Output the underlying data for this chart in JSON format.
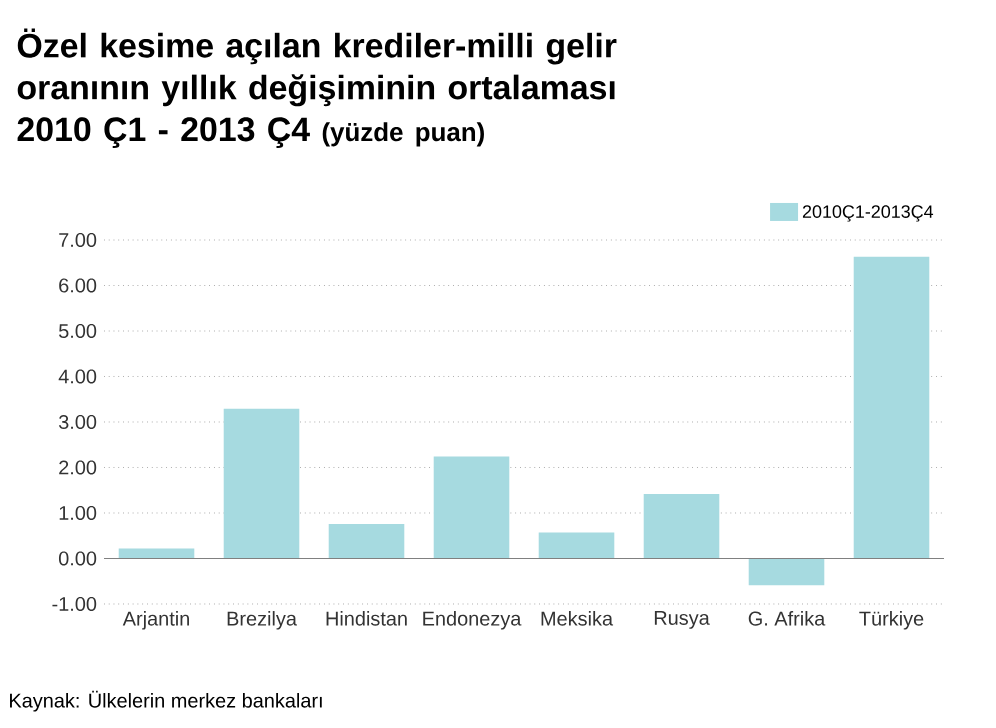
{
  "chart_data": {
    "type": "bar",
    "title": "Özel kesime açılan krediler-milli gelir oranının yıllık değişiminin ortalaması 2010 Ç1 - 2013 Ç4",
    "subtitle": "(yüzde puan)",
    "categories": [
      "Arjantin",
      "Brezilya",
      "Hindistan",
      "Endonezya",
      "Meksika",
      "Rusya",
      "G. Afrika",
      "Türkiye"
    ],
    "series": [
      {
        "name": "2010Ç1-2013Ç4",
        "color": "#a6dae0",
        "values": [
          0.22,
          3.29,
          0.76,
          2.24,
          0.57,
          1.42,
          -0.59,
          6.63
        ]
      }
    ],
    "ylim": [
      -1,
      7
    ],
    "yticks": [
      {
        "value": -1,
        "label": "-1.00"
      },
      {
        "value": 0,
        "label": "0.00"
      },
      {
        "value": 1,
        "label": "1.00"
      },
      {
        "value": 2,
        "label": "2.00"
      },
      {
        "value": 3,
        "label": "3.00"
      },
      {
        "value": 4,
        "label": "4.00"
      },
      {
        "value": 5,
        "label": "5.00"
      },
      {
        "value": 6,
        "label": "6.00"
      },
      {
        "value": 7,
        "label": "7.00"
      }
    ],
    "grid": "y",
    "legend": "top right",
    "annotations": [
      "Kaynak: Ülkelerin merkez bankaları"
    ]
  }
}
